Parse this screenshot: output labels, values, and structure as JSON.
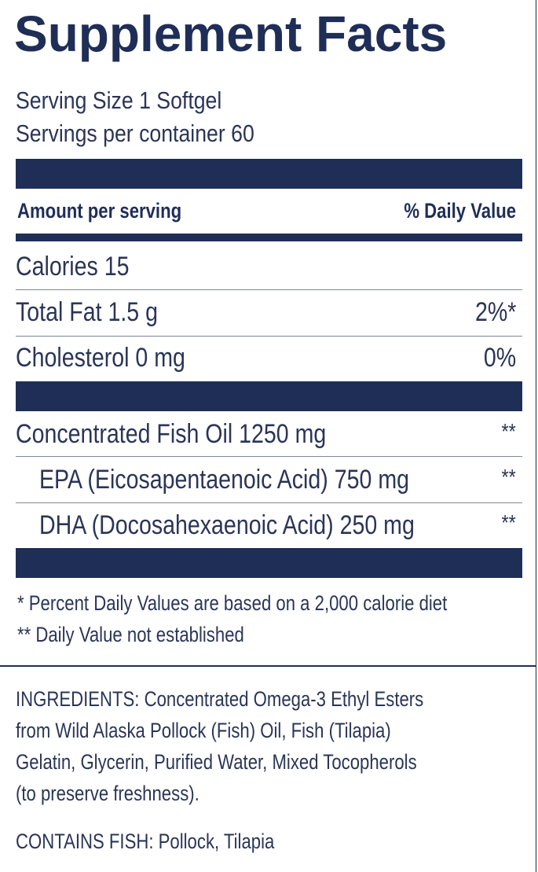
{
  "title": "Supplement Facts",
  "serving_size": "Serving Size 1 Softgel",
  "servings_per_container": "Servings per container 60",
  "header": {
    "amount": "Amount per serving",
    "daily_value": "% Daily Value"
  },
  "nutrients": [
    {
      "label": "Calories 15",
      "dv": ""
    },
    {
      "label": "Total Fat 1.5 g",
      "dv": "2%*"
    },
    {
      "label": "Cholesterol 0 mg",
      "dv": "0%"
    }
  ],
  "ingredients_active": [
    {
      "label": "Concentrated Fish Oil 1250 mg",
      "dv": "**"
    },
    {
      "label": "EPA (Eicosapentaenoic Acid) 750 mg",
      "dv": "**"
    },
    {
      "label": "DHA (Docosahexaenoic Acid) 250 mg",
      "dv": "**"
    }
  ],
  "footnotes": [
    "* Percent Daily Values are based on a 2,000 calorie diet",
    "** Daily Value not established"
  ],
  "ingredients_lines": [
    "INGREDIENTS: Concentrated Omega-3 Ethyl Esters",
    "from Wild Alaska Pollock (Fish) Oil, Fish (Tilapia)",
    "Gelatin, Glycerin, Purified Water, Mixed Tocopherols",
    "(to preserve freshness)."
  ],
  "contains": "CONTAINS FISH: Pollock, Tilapia",
  "colors": {
    "navy": "#1f2e57",
    "text": "#2a3557"
  }
}
